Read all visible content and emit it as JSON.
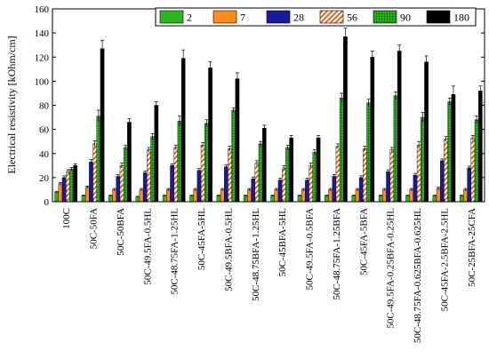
{
  "chart_data": {
    "type": "bar",
    "ylabel": "Electrical resistivity [kOhm/cm]",
    "xlabel": "",
    "ylim": [
      0,
      160
    ],
    "yticks": [
      0,
      20,
      40,
      60,
      80,
      100,
      120,
      140,
      160
    ],
    "grid": false,
    "legend_position": "top-right",
    "categories": [
      "100C",
      "50C-50FA",
      "50C-50BFA",
      "50C-49.5FA-0.5HL",
      "50C-48.75FA-1.25HL",
      "50C-45FA-5HL",
      "50C-49.5BFA-0.5HL",
      "50C-48.75BFA-1.25HL",
      "50C-45BFA-5HL",
      "50C-49.5FA-0.5BFA",
      "50C-48.75FA-1.25BFA",
      "50C-45FA-5BFA",
      "50C-49.5FA-0.25BFA-0.25HL",
      "50C-48.75FA-0.625BFA-0.625HL",
      "50C-45FA-2.5BFA-2.5HL",
      "50C-25BFA-25CFA"
    ],
    "series": [
      {
        "name": "2",
        "color": "#2db51f",
        "pattern": "solid",
        "values": [
          8,
          5,
          5,
          4,
          5,
          5,
          5,
          5,
          5,
          5,
          5,
          5,
          5,
          5,
          5,
          5
        ],
        "errors": [
          0.5,
          0.5,
          0.5,
          0.5,
          0.5,
          0.5,
          0.5,
          0.5,
          0.5,
          0.5,
          0.5,
          0.5,
          0.5,
          0.5,
          0.5,
          0.5
        ]
      },
      {
        "name": "7",
        "color": "#ff8c1a",
        "pattern": "solid",
        "values": [
          15,
          12,
          10,
          10,
          10,
          10,
          10,
          10,
          10,
          10,
          10,
          10,
          10,
          10,
          11,
          10
        ],
        "errors": [
          1,
          1,
          1,
          1,
          1,
          1,
          1,
          1,
          1,
          1,
          1,
          1,
          1,
          1,
          1,
          1
        ]
      },
      {
        "name": "28",
        "color": "#1a1a9c",
        "pattern": "solid",
        "values": [
          20,
          33,
          21,
          24,
          30,
          26,
          29,
          19,
          18,
          18,
          21,
          20,
          25,
          22,
          34,
          28
        ],
        "errors": [
          1.5,
          2,
          1.5,
          1.5,
          1.5,
          1.5,
          1.5,
          1.5,
          1.5,
          1.5,
          1.5,
          1.5,
          1.5,
          1.5,
          1.5,
          1.5
        ]
      },
      {
        "name": "56",
        "color": "#e06a1f",
        "pattern": "hatch",
        "values": [
          25,
          48,
          30,
          43,
          45,
          47,
          44,
          32,
          28,
          30,
          46,
          44,
          43,
          47,
          52,
          53
        ],
        "errors": [
          1.5,
          2.5,
          2,
          2,
          2,
          2,
          2,
          2,
          2,
          2,
          2,
          2,
          2,
          3,
          2,
          2
        ]
      },
      {
        "name": "90",
        "color": "#2db51f",
        "pattern": "grid",
        "values": [
          27,
          71,
          45,
          54,
          67,
          65,
          76,
          48,
          45,
          41,
          86,
          82,
          88,
          70,
          83,
          68
        ],
        "errors": [
          1.5,
          5,
          2,
          2.5,
          4,
          3,
          2,
          2,
          2,
          2,
          4,
          3,
          3,
          4,
          3,
          3
        ]
      },
      {
        "name": "180",
        "color": "#000000",
        "pattern": "solid",
        "values": [
          30,
          127,
          66,
          80,
          119,
          111,
          102,
          61,
          53,
          53,
          137,
          120,
          125,
          116,
          89,
          92
        ],
        "errors": [
          1.5,
          7,
          3,
          3,
          7,
          5,
          5,
          2.5,
          2,
          2,
          7,
          5,
          5,
          5,
          7,
          4
        ]
      }
    ]
  }
}
